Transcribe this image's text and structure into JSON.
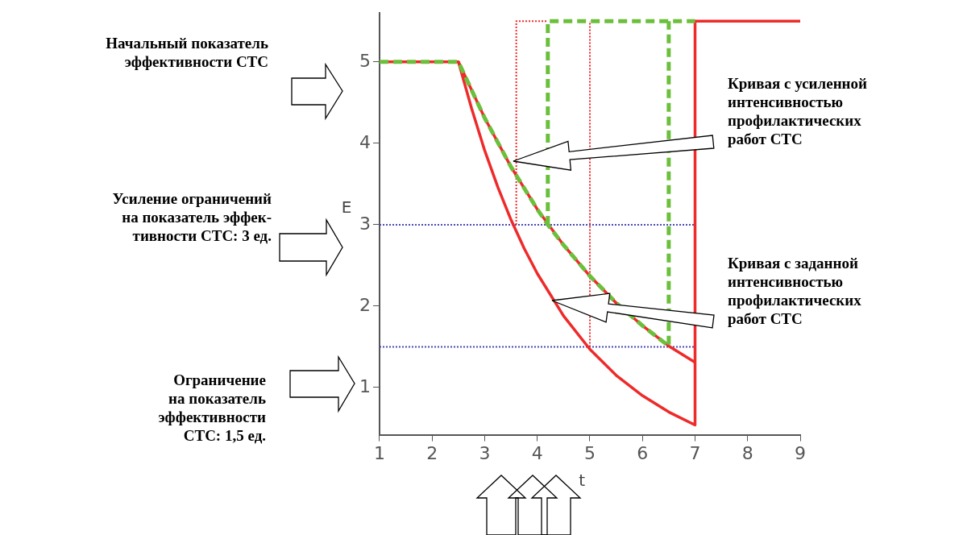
{
  "chart_data": {
    "type": "line",
    "xlabel": "t",
    "ylabel": "E",
    "xlim": [
      1,
      9
    ],
    "ylim": [
      0.42,
      5.6
    ],
    "xticks": [
      1,
      2,
      3,
      4,
      5,
      6,
      7,
      8,
      9
    ],
    "yticks": [
      1,
      2,
      3,
      4,
      5
    ],
    "grid": false,
    "legend": false,
    "marker": "none",
    "series": [
      {
        "color": "#4a4ab4",
        "line_style": "dotted",
        "x": [
          1,
          7
        ],
        "values": [
          3,
          3
        ]
      },
      {
        "color": "#4a4ab4",
        "line_style": "dotted",
        "x": [
          1,
          7
        ],
        "values": [
          1.5,
          1.5
        ]
      },
      {
        "color": "#ee2a2a",
        "line_style": "dotted",
        "x": [
          3.6,
          3.6,
          4.2
        ],
        "values": [
          3.0,
          5.5,
          5.5
        ]
      },
      {
        "color": "#ee2a2a",
        "line_style": "dotted",
        "x": [
          5,
          5
        ],
        "values": [
          1.5,
          5.5
        ]
      },
      {
        "color": "#ee2a2a",
        "line_style": "solid",
        "x": [
          1,
          2.5,
          2.75,
          3,
          3.25,
          3.5,
          3.75,
          4,
          4.5,
          5,
          5.5,
          6,
          6.5,
          7,
          7,
          9
        ],
        "values": [
          5,
          5,
          4.43,
          3.91,
          3.46,
          3.06,
          2.71,
          2.4,
          1.88,
          1.47,
          1.15,
          0.9,
          0.7,
          0.54,
          5.5,
          5.5
        ]
      },
      {
        "color": "#ee2a2a",
        "line_style": "solid",
        "x": [
          2.5,
          3,
          3.5,
          4,
          4.5,
          5,
          5.5,
          6,
          6.5,
          7
        ],
        "values": [
          5,
          4.31,
          3.71,
          3.19,
          2.75,
          2.37,
          2.04,
          1.76,
          1.51,
          1.31
        ]
      },
      {
        "color": "#6cbf3c",
        "line_style": "dashed",
        "x": [
          1,
          2.5,
          3,
          3.5,
          4,
          4.2,
          4.5,
          5,
          5.5,
          6,
          6.5,
          6.5
        ],
        "values": [
          5,
          5,
          4.31,
          3.71,
          3.19,
          3.0,
          2.75,
          2.37,
          2.04,
          1.76,
          1.51,
          5.5
        ]
      },
      {
        "color": "#6cbf3c",
        "line_style": "dashed",
        "x": [
          4.2,
          4.2,
          7
        ],
        "values": [
          3.0,
          5.5,
          5.5
        ]
      }
    ],
    "annotations": [
      "Начальный показатель\nэффективности СТС",
      "Усиление ограничений\nна показатель эффек-\nтивности СТС: 3  ед.",
      "Ограничение\nна показатель\nэффективности\nСТС: 1,5 ед.",
      "Кривая с усиленной\nинтенсивностью\nпрофилактических\nработ СТС",
      "Кривая с заданной\nинтенсивностью\nпрофилактических\nработ СТС"
    ]
  }
}
